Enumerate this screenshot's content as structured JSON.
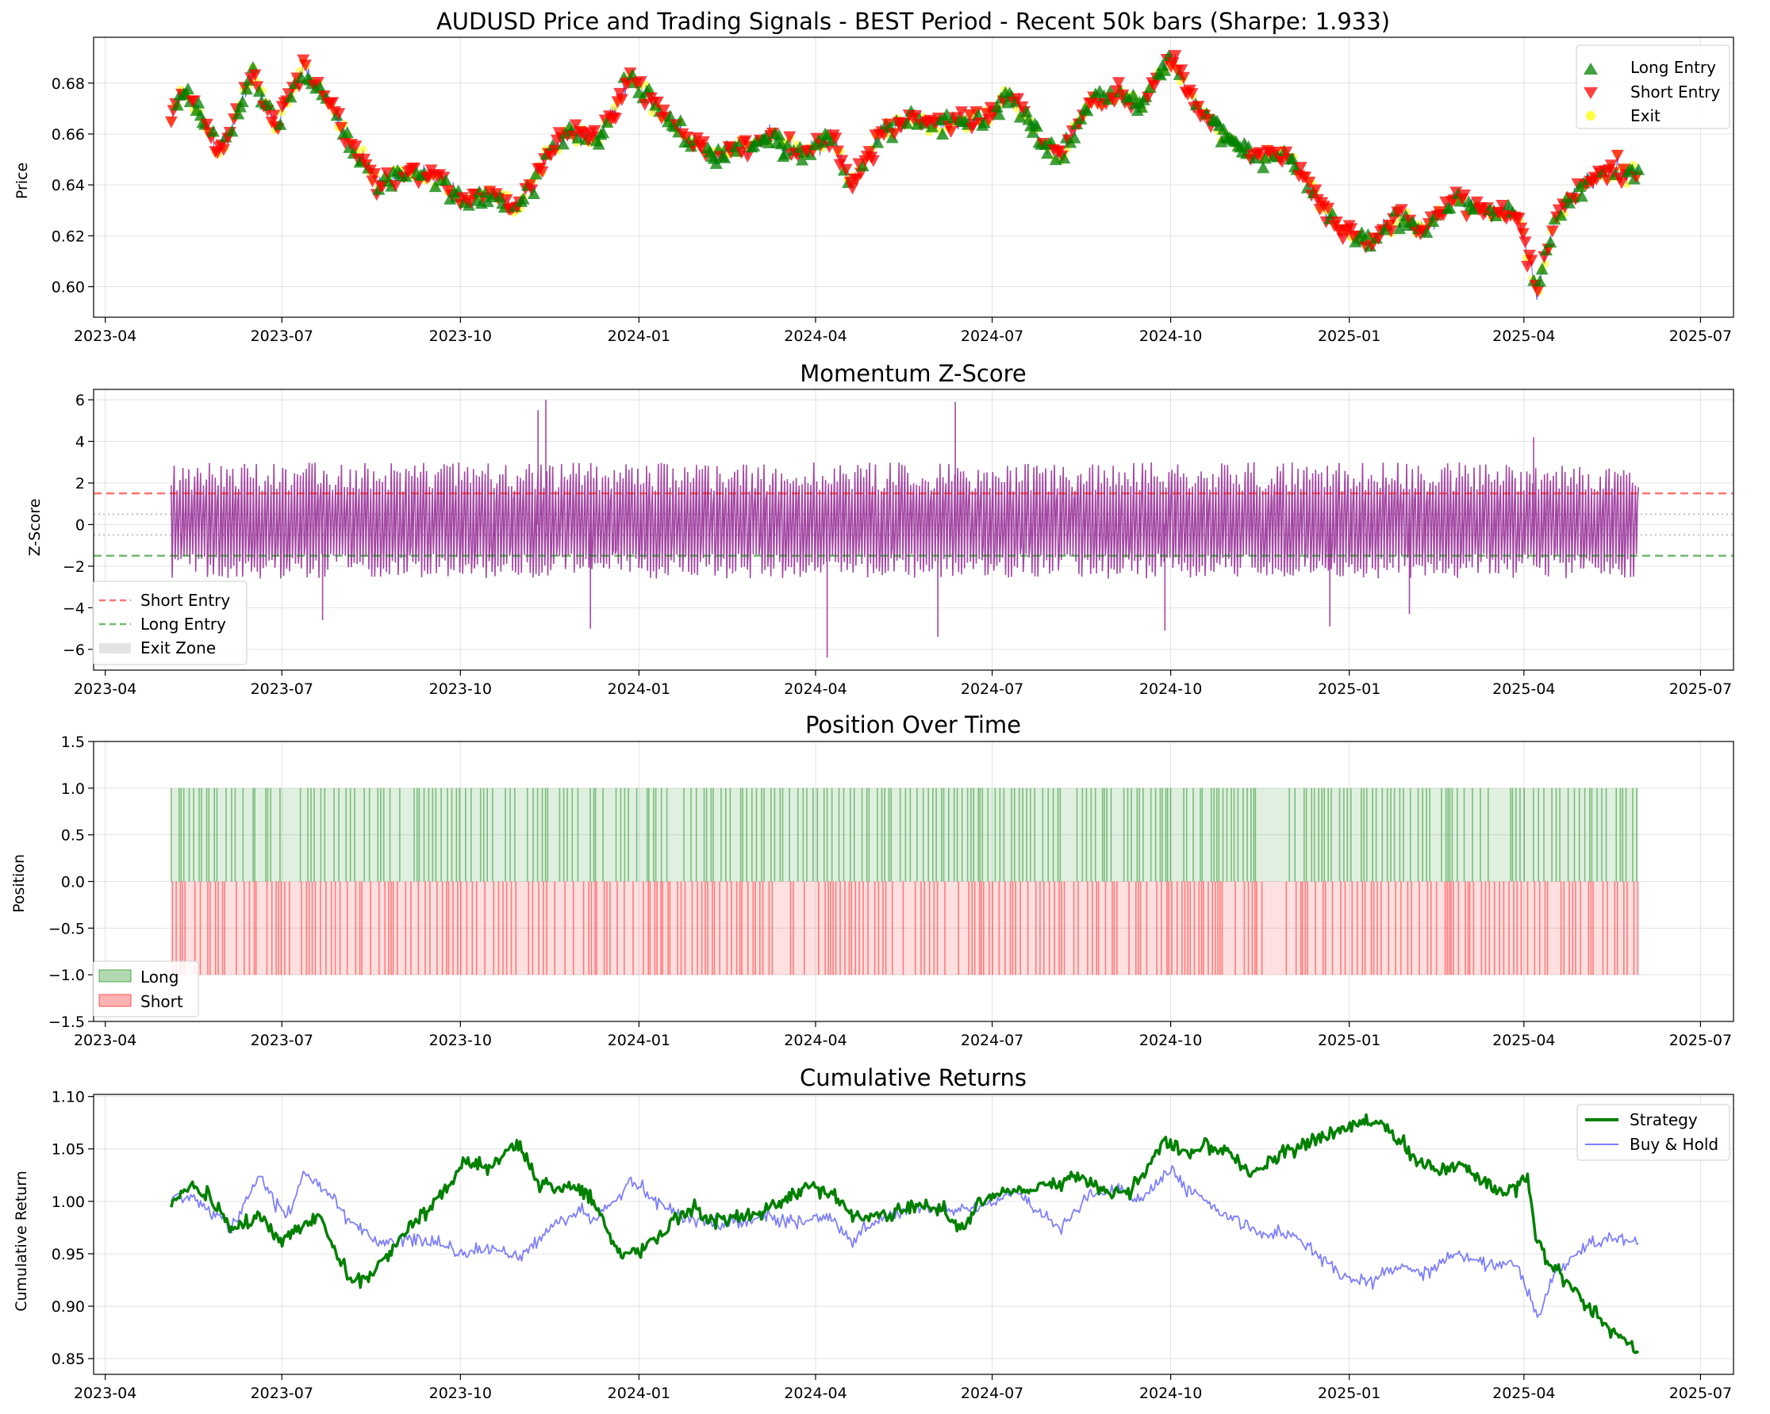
{
  "chart_data": [
    {
      "type": "scatter",
      "title": "AUDUSD Price and Trading Signals - BEST Period - Recent 50k bars (Sharpe: 1.933)",
      "xlabel": "",
      "ylabel": "Price",
      "x_range": [
        "2023-03-26",
        "2025-07-18"
      ],
      "ylim": [
        0.588,
        0.698
      ],
      "y_ticks": [
        "0.60",
        "0.62",
        "0.64",
        "0.66",
        "0.68"
      ],
      "x_ticks": [
        "2023-04",
        "2023-07",
        "2023-10",
        "2024-01",
        "2024-04",
        "2024-07",
        "2024-10",
        "2025-01",
        "2025-04",
        "2025-07"
      ],
      "grid": true,
      "legend": "upper right",
      "price_line_color": "#0000ff",
      "price_path": [
        [
          "2023-05-05",
          0.667
        ],
        [
          "2023-05-12",
          0.677
        ],
        [
          "2023-05-20",
          0.667
        ],
        [
          "2023-05-30",
          0.652
        ],
        [
          "2023-06-08",
          0.668
        ],
        [
          "2023-06-16",
          0.684
        ],
        [
          "2023-06-28",
          0.663
        ],
        [
          "2023-07-12",
          0.686
        ],
        [
          "2023-07-26",
          0.672
        ],
        [
          "2023-08-05",
          0.655
        ],
        [
          "2023-08-20",
          0.641
        ],
        [
          "2023-09-05",
          0.645
        ],
        [
          "2023-09-20",
          0.643
        ],
        [
          "2023-10-03",
          0.633
        ],
        [
          "2023-10-15",
          0.637
        ],
        [
          "2023-10-30",
          0.631
        ],
        [
          "2023-11-15",
          0.652
        ],
        [
          "2023-11-28",
          0.662
        ],
        [
          "2023-12-10",
          0.657
        ],
        [
          "2023-12-28",
          0.683
        ],
        [
          "2024-01-10",
          0.67
        ],
        [
          "2024-01-25",
          0.658
        ],
        [
          "2024-02-10",
          0.652
        ],
        [
          "2024-02-25",
          0.654
        ],
        [
          "2024-03-10",
          0.66
        ],
        [
          "2024-03-25",
          0.652
        ],
        [
          "2024-04-10",
          0.66
        ],
        [
          "2024-04-19",
          0.64
        ],
        [
          "2024-05-05",
          0.66
        ],
        [
          "2024-05-20",
          0.666
        ],
        [
          "2024-06-10",
          0.664
        ],
        [
          "2024-06-30",
          0.667
        ],
        [
          "2024-07-10",
          0.676
        ],
        [
          "2024-07-28",
          0.656
        ],
        [
          "2024-08-05",
          0.651
        ],
        [
          "2024-08-20",
          0.672
        ],
        [
          "2024-09-05",
          0.676
        ],
        [
          "2024-09-15",
          0.67
        ],
        [
          "2024-09-30",
          0.691
        ],
        [
          "2024-10-15",
          0.671
        ],
        [
          "2024-11-01",
          0.658
        ],
        [
          "2024-11-15",
          0.65
        ],
        [
          "2024-12-01",
          0.651
        ],
        [
          "2024-12-15",
          0.636
        ],
        [
          "2024-12-28",
          0.622
        ],
        [
          "2025-01-12",
          0.618
        ],
        [
          "2025-01-28",
          0.628
        ],
        [
          "2025-02-08",
          0.622
        ],
        [
          "2025-02-25",
          0.635
        ],
        [
          "2025-03-12",
          0.63
        ],
        [
          "2025-03-28",
          0.629
        ],
        [
          "2025-04-08",
          0.598
        ],
        [
          "2025-04-18",
          0.628
        ],
        [
          "2025-05-01",
          0.64
        ],
        [
          "2025-05-15",
          0.645
        ],
        [
          "2025-05-30",
          0.644
        ]
      ],
      "series": [
        {
          "name": "Long Entry",
          "marker": "triangle-up",
          "color": "#008000"
        },
        {
          "name": "Short Entry",
          "marker": "triangle-down",
          "color": "#ff0000"
        },
        {
          "name": "Exit",
          "marker": "circle",
          "color": "#ffff00"
        }
      ]
    },
    {
      "type": "line",
      "title": "Momentum Z-Score",
      "xlabel": "",
      "ylabel": "Z-Score",
      "x_range": [
        "2023-03-26",
        "2025-07-18"
      ],
      "ylim": [
        -7,
        6.5
      ],
      "y_ticks": [
        "−6",
        "−4",
        "−2",
        "0",
        "2",
        "4",
        "6"
      ],
      "x_ticks": [
        "2023-04",
        "2023-07",
        "2023-10",
        "2024-01",
        "2024-04",
        "2024-07",
        "2024-10",
        "2025-01",
        "2025-04",
        "2025-07"
      ],
      "grid": true,
      "legend": "lower left",
      "line_color": "#800080",
      "date_range": [
        "2023-05-05",
        "2025-05-30"
      ],
      "typical_band": [
        -2.6,
        3.0
      ],
      "extremes": [
        [
          "2023-07-22",
          -4.6
        ],
        [
          "2023-11-10",
          5.5
        ],
        [
          "2023-11-14",
          6.0
        ],
        [
          "2023-12-07",
          -5.0
        ],
        [
          "2024-04-07",
          -6.4
        ],
        [
          "2024-06-12",
          5.9
        ],
        [
          "2024-06-03",
          -5.4
        ],
        [
          "2024-09-28",
          -5.1
        ],
        [
          "2024-12-22",
          -4.9
        ],
        [
          "2025-02-01",
          -4.3
        ],
        [
          "2025-04-06",
          4.2
        ]
      ],
      "thresholds": [
        {
          "name": "Short Entry",
          "y": 1.5,
          "color": "#ff0000",
          "style": "dashed"
        },
        {
          "name": "Long Entry",
          "y": -1.5,
          "color": "#008000",
          "style": "dashed"
        },
        {
          "name": "Exit Zone",
          "y_range": [
            -0.5,
            0.5
          ],
          "color": "#808080",
          "style": "dotted"
        }
      ]
    },
    {
      "type": "area",
      "title": "Position Over Time",
      "xlabel": "",
      "ylabel": "Position",
      "x_range": [
        "2023-03-26",
        "2025-07-18"
      ],
      "ylim": [
        -1.5,
        1.5
      ],
      "y_ticks": [
        "−1.5",
        "−1.0",
        "−0.5",
        "0.0",
        "0.5",
        "1.0",
        "1.5"
      ],
      "x_ticks": [
        "2023-04",
        "2023-07",
        "2023-10",
        "2024-01",
        "2024-04",
        "2024-07",
        "2024-10",
        "2025-01",
        "2025-04",
        "2025-07"
      ],
      "grid": true,
      "legend": "lower left",
      "date_range": [
        "2023-05-05",
        "2025-05-30"
      ],
      "values": [
        1,
        -1
      ],
      "series": [
        {
          "name": "Long",
          "value": 1,
          "color": "#008000"
        },
        {
          "name": "Short",
          "value": -1,
          "color": "#ff0000"
        }
      ]
    },
    {
      "type": "line",
      "title": "Cumulative Returns",
      "xlabel": "",
      "ylabel": "Cumulative Return",
      "x_range": [
        "2023-03-26",
        "2025-07-18"
      ],
      "ylim": [
        0.835,
        1.102
      ],
      "y_ticks": [
        "0.85",
        "0.90",
        "0.95",
        "1.00",
        "1.05",
        "1.10"
      ],
      "x_ticks": [
        "2023-04",
        "2023-07",
        "2023-10",
        "2024-01",
        "2024-04",
        "2024-07",
        "2024-10",
        "2025-01",
        "2025-04",
        "2025-07"
      ],
      "grid": true,
      "legend": "upper right",
      "series": [
        {
          "name": "Strategy",
          "color": "#008000",
          "points": [
            [
              "2023-05-05",
              1.0
            ],
            [
              "2023-05-15",
              1.015
            ],
            [
              "2023-05-25",
              1.005
            ],
            [
              "2023-06-05",
              0.975
            ],
            [
              "2023-06-12",
              0.978
            ],
            [
              "2023-06-20",
              0.988
            ],
            [
              "2023-06-30",
              0.96
            ],
            [
              "2023-07-10",
              0.975
            ],
            [
              "2023-07-20",
              0.985
            ],
            [
              "2023-07-28",
              0.955
            ],
            [
              "2023-08-05",
              0.925
            ],
            [
              "2023-08-15",
              0.93
            ],
            [
              "2023-08-25",
              0.95
            ],
            [
              "2023-09-05",
              0.975
            ],
            [
              "2023-09-15",
              0.995
            ],
            [
              "2023-09-25",
              1.015
            ],
            [
              "2023-10-05",
              1.04
            ],
            [
              "2023-10-15",
              1.03
            ],
            [
              "2023-10-25",
              1.05
            ],
            [
              "2023-11-01",
              1.052
            ],
            [
              "2023-11-10",
              1.02
            ],
            [
              "2023-11-20",
              1.01
            ],
            [
              "2023-12-01",
              1.015
            ],
            [
              "2023-12-10",
              0.995
            ],
            [
              "2023-12-20",
              0.955
            ],
            [
              "2023-12-28",
              0.948
            ],
            [
              "2024-01-10",
              0.965
            ],
            [
              "2024-01-20",
              0.985
            ],
            [
              "2024-01-30",
              0.995
            ],
            [
              "2024-02-05",
              0.982
            ],
            [
              "2024-02-20",
              0.985
            ],
            [
              "2024-03-05",
              0.99
            ],
            [
              "2024-03-20",
              1.005
            ],
            [
              "2024-03-31",
              1.015
            ],
            [
              "2024-04-10",
              1.005
            ],
            [
              "2024-04-20",
              0.985
            ],
            [
              "2024-05-05",
              0.985
            ],
            [
              "2024-05-20",
              0.995
            ],
            [
              "2024-06-05",
              0.99
            ],
            [
              "2024-06-15",
              0.975
            ],
            [
              "2024-06-25",
              0.998
            ],
            [
              "2024-07-05",
              1.008
            ],
            [
              "2024-07-15",
              1.012
            ],
            [
              "2024-07-30",
              1.015
            ],
            [
              "2024-08-15",
              1.025
            ],
            [
              "2024-08-30",
              1.008
            ],
            [
              "2024-09-10",
              1.01
            ],
            [
              "2024-09-20",
              1.035
            ],
            [
              "2024-09-28",
              1.06
            ],
            [
              "2024-10-08",
              1.045
            ],
            [
              "2024-10-18",
              1.055
            ],
            [
              "2024-11-01",
              1.045
            ],
            [
              "2024-11-10",
              1.025
            ],
            [
              "2024-11-20",
              1.035
            ],
            [
              "2024-12-01",
              1.05
            ],
            [
              "2024-12-15",
              1.06
            ],
            [
              "2024-12-25",
              1.065
            ],
            [
              "2025-01-10",
              1.08
            ],
            [
              "2025-01-20",
              1.07
            ],
            [
              "2025-02-01",
              1.045
            ],
            [
              "2025-02-15",
              1.03
            ],
            [
              "2025-02-28",
              1.035
            ],
            [
              "2025-03-10",
              1.02
            ],
            [
              "2025-03-20",
              1.01
            ],
            [
              "2025-03-28",
              1.015
            ],
            [
              "2025-04-03",
              1.025
            ],
            [
              "2025-04-07",
              0.97
            ],
            [
              "2025-04-12",
              0.945
            ],
            [
              "2025-04-20",
              0.93
            ],
            [
              "2025-05-01",
              0.905
            ],
            [
              "2025-05-10",
              0.89
            ],
            [
              "2025-05-20",
              0.87
            ],
            [
              "2025-05-30",
              0.856
            ]
          ]
        },
        {
          "name": "Buy & Hold",
          "color": "#0000ff",
          "points": [
            [
              "2023-05-05",
              1.0
            ],
            [
              "2023-05-15",
              1.005
            ],
            [
              "2023-05-25",
              0.99
            ],
            [
              "2023-06-05",
              0.975
            ],
            [
              "2023-06-20",
              1.025
            ],
            [
              "2023-06-28",
              0.995
            ],
            [
              "2023-07-05",
              0.99
            ],
            [
              "2023-07-12",
              1.025
            ],
            [
              "2023-07-25",
              1.01
            ],
            [
              "2023-08-05",
              0.98
            ],
            [
              "2023-08-20",
              0.96
            ],
            [
              "2023-09-05",
              0.965
            ],
            [
              "2023-09-20",
              0.96
            ],
            [
              "2023-10-03",
              0.95
            ],
            [
              "2023-10-20",
              0.955
            ],
            [
              "2023-11-01",
              0.945
            ],
            [
              "2023-11-15",
              0.975
            ],
            [
              "2023-12-01",
              0.99
            ],
            [
              "2023-12-10",
              0.985
            ],
            [
              "2023-12-28",
              1.02
            ],
            [
              "2024-01-10",
              1.0
            ],
            [
              "2024-01-25",
              0.985
            ],
            [
              "2024-02-10",
              0.978
            ],
            [
              "2024-03-05",
              0.985
            ],
            [
              "2024-03-20",
              0.98
            ],
            [
              "2024-04-10",
              0.985
            ],
            [
              "2024-04-19",
              0.96
            ],
            [
              "2024-05-05",
              0.985
            ],
            [
              "2024-05-20",
              0.995
            ],
            [
              "2024-06-10",
              0.99
            ],
            [
              "2024-06-30",
              0.995
            ],
            [
              "2024-07-12",
              1.01
            ],
            [
              "2024-07-28",
              0.985
            ],
            [
              "2024-08-05",
              0.975
            ],
            [
              "2024-08-20",
              1.005
            ],
            [
              "2024-09-05",
              1.01
            ],
            [
              "2024-09-15",
              1.0
            ],
            [
              "2024-09-30",
              1.03
            ],
            [
              "2024-10-15",
              1.005
            ],
            [
              "2024-11-01",
              0.985
            ],
            [
              "2024-11-15",
              0.97
            ],
            [
              "2024-12-01",
              0.97
            ],
            [
              "2024-12-15",
              0.95
            ],
            [
              "2024-12-28",
              0.93
            ],
            [
              "2025-01-12",
              0.925
            ],
            [
              "2025-01-28",
              0.94
            ],
            [
              "2025-02-08",
              0.93
            ],
            [
              "2025-02-25",
              0.95
            ],
            [
              "2025-03-12",
              0.942
            ],
            [
              "2025-03-28",
              0.94
            ],
            [
              "2025-04-08",
              0.89
            ],
            [
              "2025-04-18",
              0.935
            ],
            [
              "2025-05-01",
              0.955
            ],
            [
              "2025-05-15",
              0.965
            ],
            [
              "2025-05-30",
              0.962
            ]
          ]
        }
      ]
    }
  ]
}
